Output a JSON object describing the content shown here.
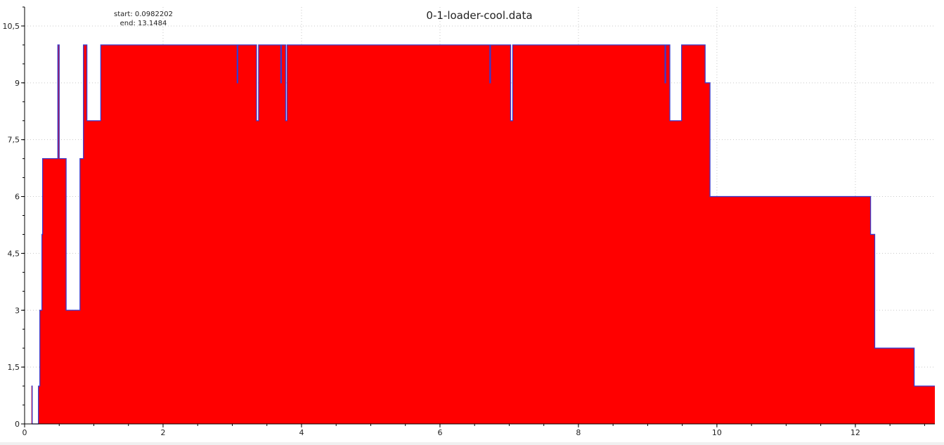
{
  "chart_data": {
    "type": "area",
    "title": "0-1-loader-cool.data",
    "annotation": {
      "start_label": "start: 0.0982202",
      "end_label": "end: 13.1484"
    },
    "xlim": [
      0,
      13.1484
    ],
    "ylim": [
      0,
      11
    ],
    "x_ticks": [
      0,
      2,
      4,
      6,
      8,
      10,
      12
    ],
    "x_tick_labels": [
      "0",
      "2",
      "4",
      "6",
      "8",
      "10",
      "12"
    ],
    "y_ticks": [
      0,
      1.5,
      3,
      4.5,
      6,
      7.5,
      9,
      10.5
    ],
    "y_tick_labels": [
      "0",
      "1,5",
      "3",
      "4,5",
      "6",
      "7,5",
      "9",
      "10,5"
    ],
    "grid": true,
    "colors": {
      "fill": "#ff0000",
      "line": "#3a3acc",
      "grid": "#c8c8c8"
    },
    "series": [
      {
        "step": "post",
        "x": [
          0.0982202,
          0.11,
          0.19,
          0.2,
          0.22,
          0.25,
          0.26,
          0.45,
          0.48,
          0.5,
          0.52,
          0.6,
          0.75,
          0.8,
          0.85,
          0.9,
          1.1,
          3.07,
          3.08,
          3.35,
          3.38,
          3.7,
          3.71,
          3.77,
          3.79,
          6.72,
          6.73,
          7.02,
          7.05,
          9.25,
          9.26,
          9.32,
          9.49,
          9.83,
          9.9,
          9.95,
          12.22,
          12.28,
          12.85,
          13.1484
        ],
        "y": [
          1,
          0,
          0,
          1,
          3,
          5,
          7,
          7,
          10,
          7,
          7,
          3,
          3,
          7,
          10,
          8,
          10,
          9,
          10,
          8,
          10,
          9,
          10,
          8,
          10,
          9,
          10,
          8,
          10,
          9,
          10,
          8,
          10,
          9,
          6,
          6,
          5,
          2,
          1,
          1
        ]
      }
    ]
  }
}
